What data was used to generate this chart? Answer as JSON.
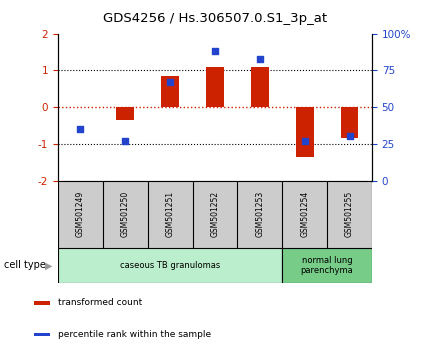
{
  "title": "GDS4256 / Hs.306507.0.S1_3p_at",
  "samples": [
    "GSM501249",
    "GSM501250",
    "GSM501251",
    "GSM501252",
    "GSM501253",
    "GSM501254",
    "GSM501255"
  ],
  "transformed_count": [
    0.0,
    -0.35,
    0.85,
    1.1,
    1.1,
    -1.35,
    -0.85
  ],
  "percentile_rank": [
    35,
    27,
    67,
    88,
    83,
    27,
    30
  ],
  "ylim_left": [
    -2,
    2
  ],
  "ylim_right": [
    0,
    100
  ],
  "yticks_left": [
    -2,
    -1,
    0,
    1,
    2
  ],
  "yticks_right": [
    0,
    25,
    50,
    75,
    100
  ],
  "ytick_labels_right": [
    "0",
    "25",
    "50",
    "75",
    "100%"
  ],
  "bar_color": "#cc2200",
  "dot_color": "#2244cc",
  "cell_types": [
    {
      "label": "caseous TB granulomas",
      "samples": [
        0,
        1,
        2,
        3,
        4
      ],
      "color": "#bbeecc"
    },
    {
      "label": "normal lung\nparenchyma",
      "samples": [
        5,
        6
      ],
      "color": "#77cc88"
    }
  ],
  "legend_items": [
    {
      "color": "#cc2200",
      "label": "transformed count"
    },
    {
      "color": "#2244cc",
      "label": "percentile rank within the sample"
    }
  ],
  "cell_type_label": "cell type",
  "background_color": "#ffffff",
  "sample_box_color": "#cccccc",
  "bar_width": 0.4
}
